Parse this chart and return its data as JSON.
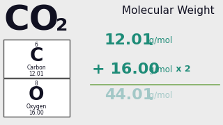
{
  "bg_color": "#ececec",
  "title": "Molecular Weight",
  "carbon_atomic_num": "6",
  "carbon_symbol": "C",
  "carbon_name": "Carbon",
  "carbon_mass": "12.01",
  "oxygen_atomic_num": "8",
  "oxygen_symbol": "O",
  "oxygen_name": "Oxygen",
  "oxygen_mass": "16.00",
  "line1_num": "12.01",
  "line1_unit": " g/mol",
  "line2_prefix": "+ ",
  "line2_num": "16.00",
  "line2_unit": " g/mol",
  "line2_suffix": " x 2",
  "line3_num": "44.01",
  "line3_unit": " g/mol",
  "teal_color": "#1e8c78",
  "teal_blur": "#8bbcbb",
  "dark_color": "#111122",
  "line_color": "#7aaa5a",
  "box_border": "#555555",
  "box_bg": "#ffffff",
  "formula_color": "#111122"
}
